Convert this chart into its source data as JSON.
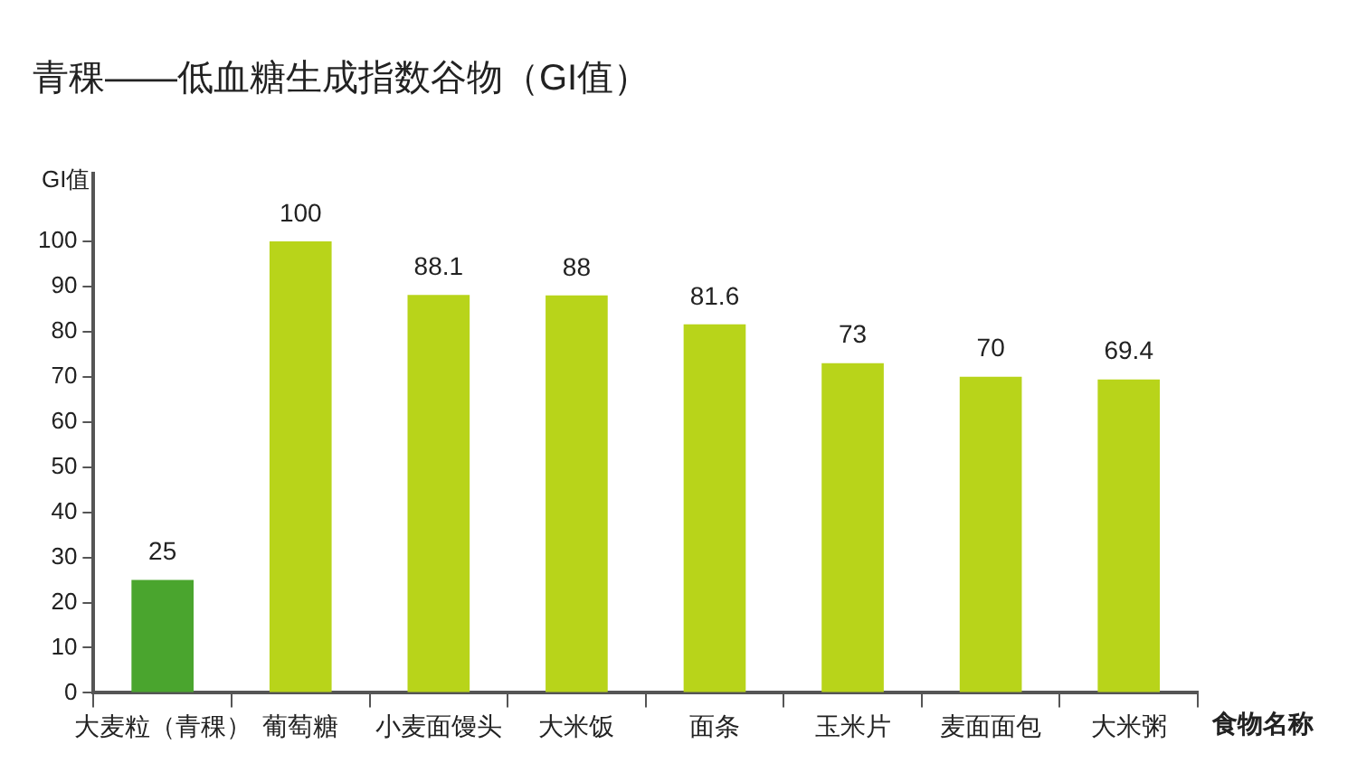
{
  "chart_data": {
    "type": "bar",
    "title": "青稞——低血糖生成指数谷物（GI值）",
    "ylabel": "GI值",
    "xlabel": "食物名称",
    "categories": [
      "大麦粒（青稞）",
      "葡萄糖",
      "小麦面馒头",
      "大米饭",
      "面条",
      "玉米片",
      "麦面面包",
      "大米粥"
    ],
    "values": [
      25,
      100,
      88.1,
      88,
      81.6,
      73,
      70,
      69.4
    ],
    "colors": [
      "#4aa52e",
      "#b8d41a",
      "#b8d41a",
      "#b8d41a",
      "#b8d41a",
      "#b8d41a",
      "#b8d41a",
      "#b8d41a"
    ],
    "ylim": [
      0,
      115
    ],
    "yticks": [
      0,
      10,
      20,
      30,
      40,
      50,
      60,
      70,
      80,
      90,
      100
    ],
    "grid": false,
    "legend": false,
    "data_labels": true
  }
}
